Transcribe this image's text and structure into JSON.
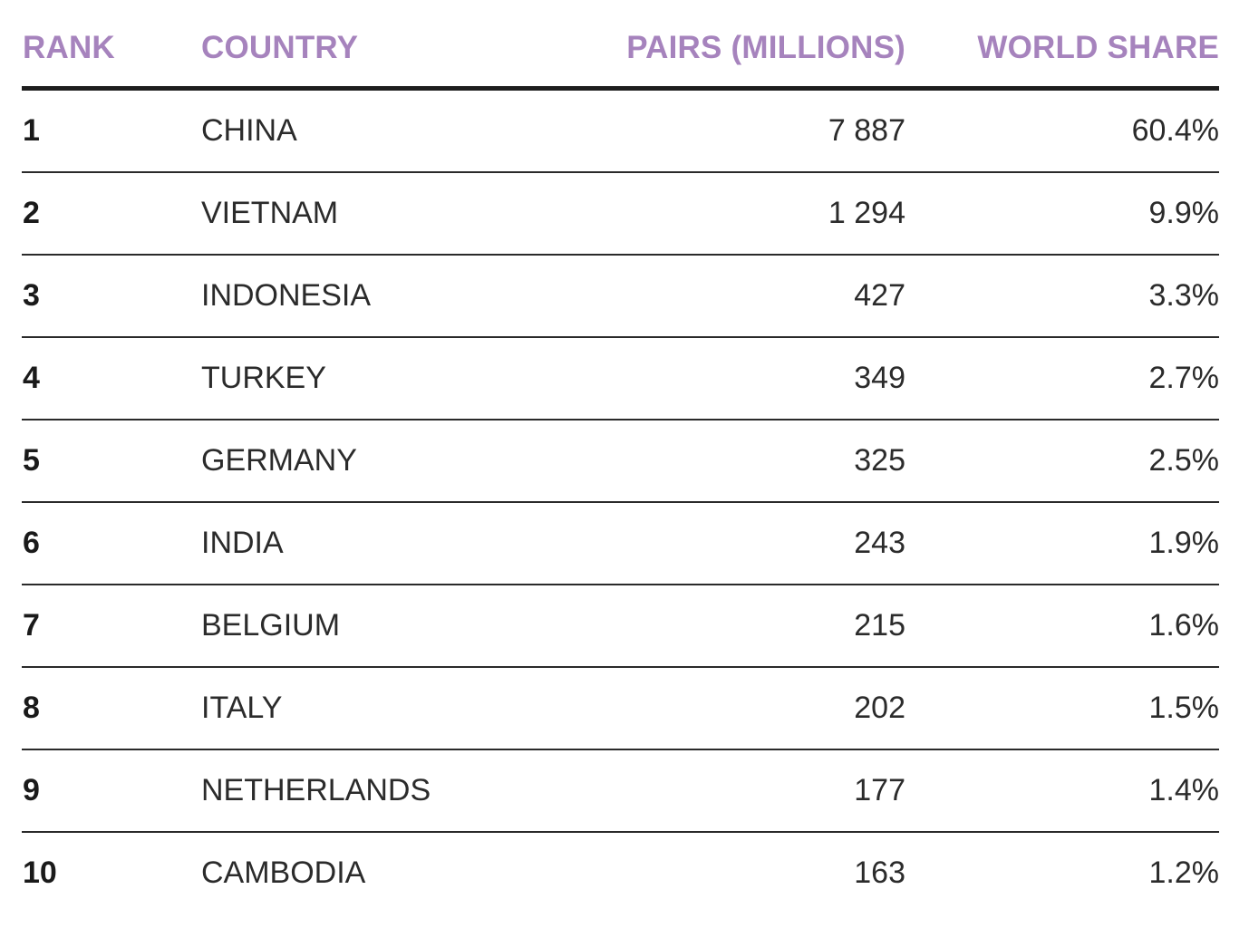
{
  "colors": {
    "header_text": "#a683bd",
    "body_text": "#2b2b2b",
    "rule": "#1e1e1e"
  },
  "chart_data": {
    "type": "table",
    "columns": [
      "RANK",
      "COUNTRY",
      "PAIRS (MILLIONS)",
      "WORLD SHARE"
    ],
    "rows": [
      {
        "rank": "1",
        "country": "CHINA",
        "pairs": "7 887",
        "share": "60.4%"
      },
      {
        "rank": "2",
        "country": "VIETNAM",
        "pairs": "1 294",
        "share": "9.9%"
      },
      {
        "rank": "3",
        "country": "INDONESIA",
        "pairs": "427",
        "share": "3.3%"
      },
      {
        "rank": "4",
        "country": "TURKEY",
        "pairs": "349",
        "share": "2.7%"
      },
      {
        "rank": "5",
        "country": "GERMANY",
        "pairs": "325",
        "share": "2.5%"
      },
      {
        "rank": "6",
        "country": "INDIA",
        "pairs": "243",
        "share": "1.9%"
      },
      {
        "rank": "7",
        "country": "BELGIUM",
        "pairs": "215",
        "share": "1.6%"
      },
      {
        "rank": "8",
        "country": "ITALY",
        "pairs": "202",
        "share": "1.5%"
      },
      {
        "rank": "9",
        "country": "NETHERLANDS",
        "pairs": "177",
        "share": "1.4%"
      },
      {
        "rank": "10",
        "country": "CAMBODIA",
        "pairs": "163",
        "share": "1.2%"
      }
    ]
  }
}
